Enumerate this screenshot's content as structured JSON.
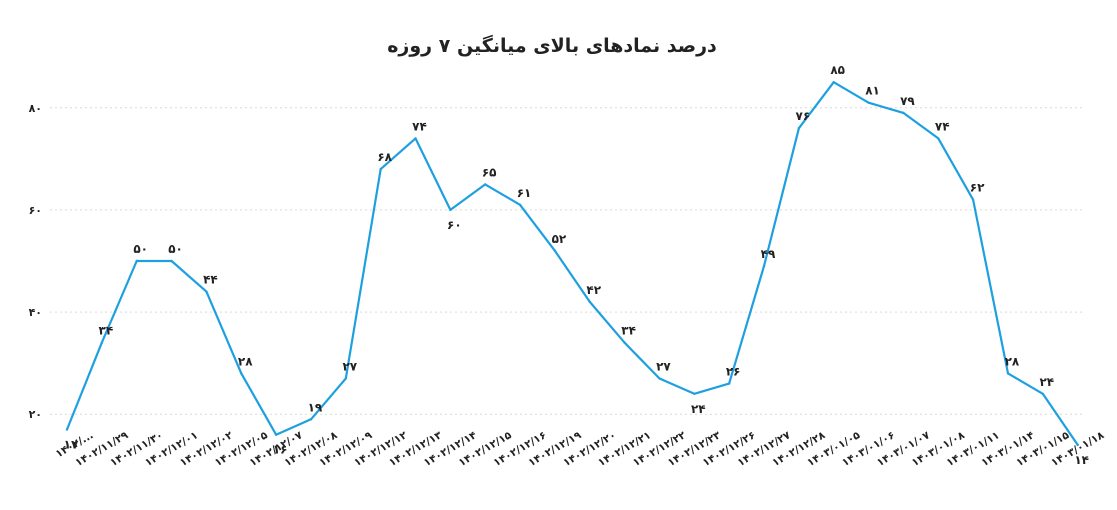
{
  "chart_data": {
    "type": "line",
    "title": "درصد نمادهای بالای میانگین ۷ روزه",
    "x": [
      "۱۴۰۲/...",
      "۱۴۰۲/۱۱/۲۹",
      "۱۴۰۲/۱۱/۳۰",
      "۱۴۰۲/۱۲/۰۱",
      "۱۴۰۲/۱۲/۰۲",
      "۱۴۰۲/۱۲/۰۵",
      "۱۴۰۲/۱۲/۰۷",
      "۱۴۰۲/۱۲/۰۸",
      "۱۴۰۲/۱۲/۰۹",
      "۱۴۰۲/۱۲/۱۲",
      "۱۴۰۲/۱۲/۱۳",
      "۱۴۰۲/۱۲/۱۴",
      "۱۴۰۲/۱۲/۱۵",
      "۱۴۰۲/۱۲/۱۶",
      "۱۴۰۲/۱۲/۱۹",
      "۱۴۰۲/۱۲/۲۰",
      "۱۴۰۲/۱۲/۲۱",
      "۱۴۰۲/۱۲/۲۲",
      "۱۴۰۲/۱۲/۲۳",
      "۱۴۰۲/۱۲/۲۶",
      "۱۴۰۲/۱۲/۲۷",
      "۱۴۰۲/۱۲/۲۸",
      "۱۴۰۳/۰۱/۰۵",
      "۱۴۰۳/۰۱/۰۶",
      "۱۴۰۳/۰۱/۰۷",
      "۱۴۰۳/۰۱/۰۸",
      "۱۴۰۳/۰۱/۱۱",
      "۱۴۰۳/۰۱/۱۴",
      "۱۴۰۳/۰۱/۱۵",
      "۱۴۰۳/۰۱/۱۸"
    ],
    "series": [
      {
        "values": [
          17,
          34,
          50,
          50,
          44,
          28,
          16,
          19,
          27,
          68,
          74,
          60,
          65,
          61,
          52,
          42,
          34,
          27,
          24,
          26,
          49,
          76,
          85,
          81,
          79,
          74,
          62,
          28,
          24,
          14
        ],
        "labels": [
          "۱۷",
          "۳۴",
          "۵۰",
          "۵۰",
          "۴۴",
          "۲۸",
          "۱۶",
          "۱۹",
          "۲۷",
          "۶۸",
          "۷۴",
          "۶۰",
          "۶۵",
          "۶۱",
          "۵۲",
          "۴۲",
          "۳۴",
          "۲۷",
          "۲۴",
          "۲۶",
          "۴۹",
          "۷۶",
          "۸۵",
          "۸۱",
          "۷۹",
          "۷۴",
          "۶۲",
          "۲۸",
          "۲۴",
          "۱۴"
        ]
      }
    ],
    "yticks": [
      20,
      40,
      60,
      80
    ],
    "ytick_labels": [
      "۲۰",
      "۴۰",
      "۶۰",
      "۸۰"
    ],
    "ylim": [
      10,
      90
    ],
    "xlabel": "",
    "ylabel": "",
    "grid": true,
    "line_color": "#1ea0e0"
  }
}
